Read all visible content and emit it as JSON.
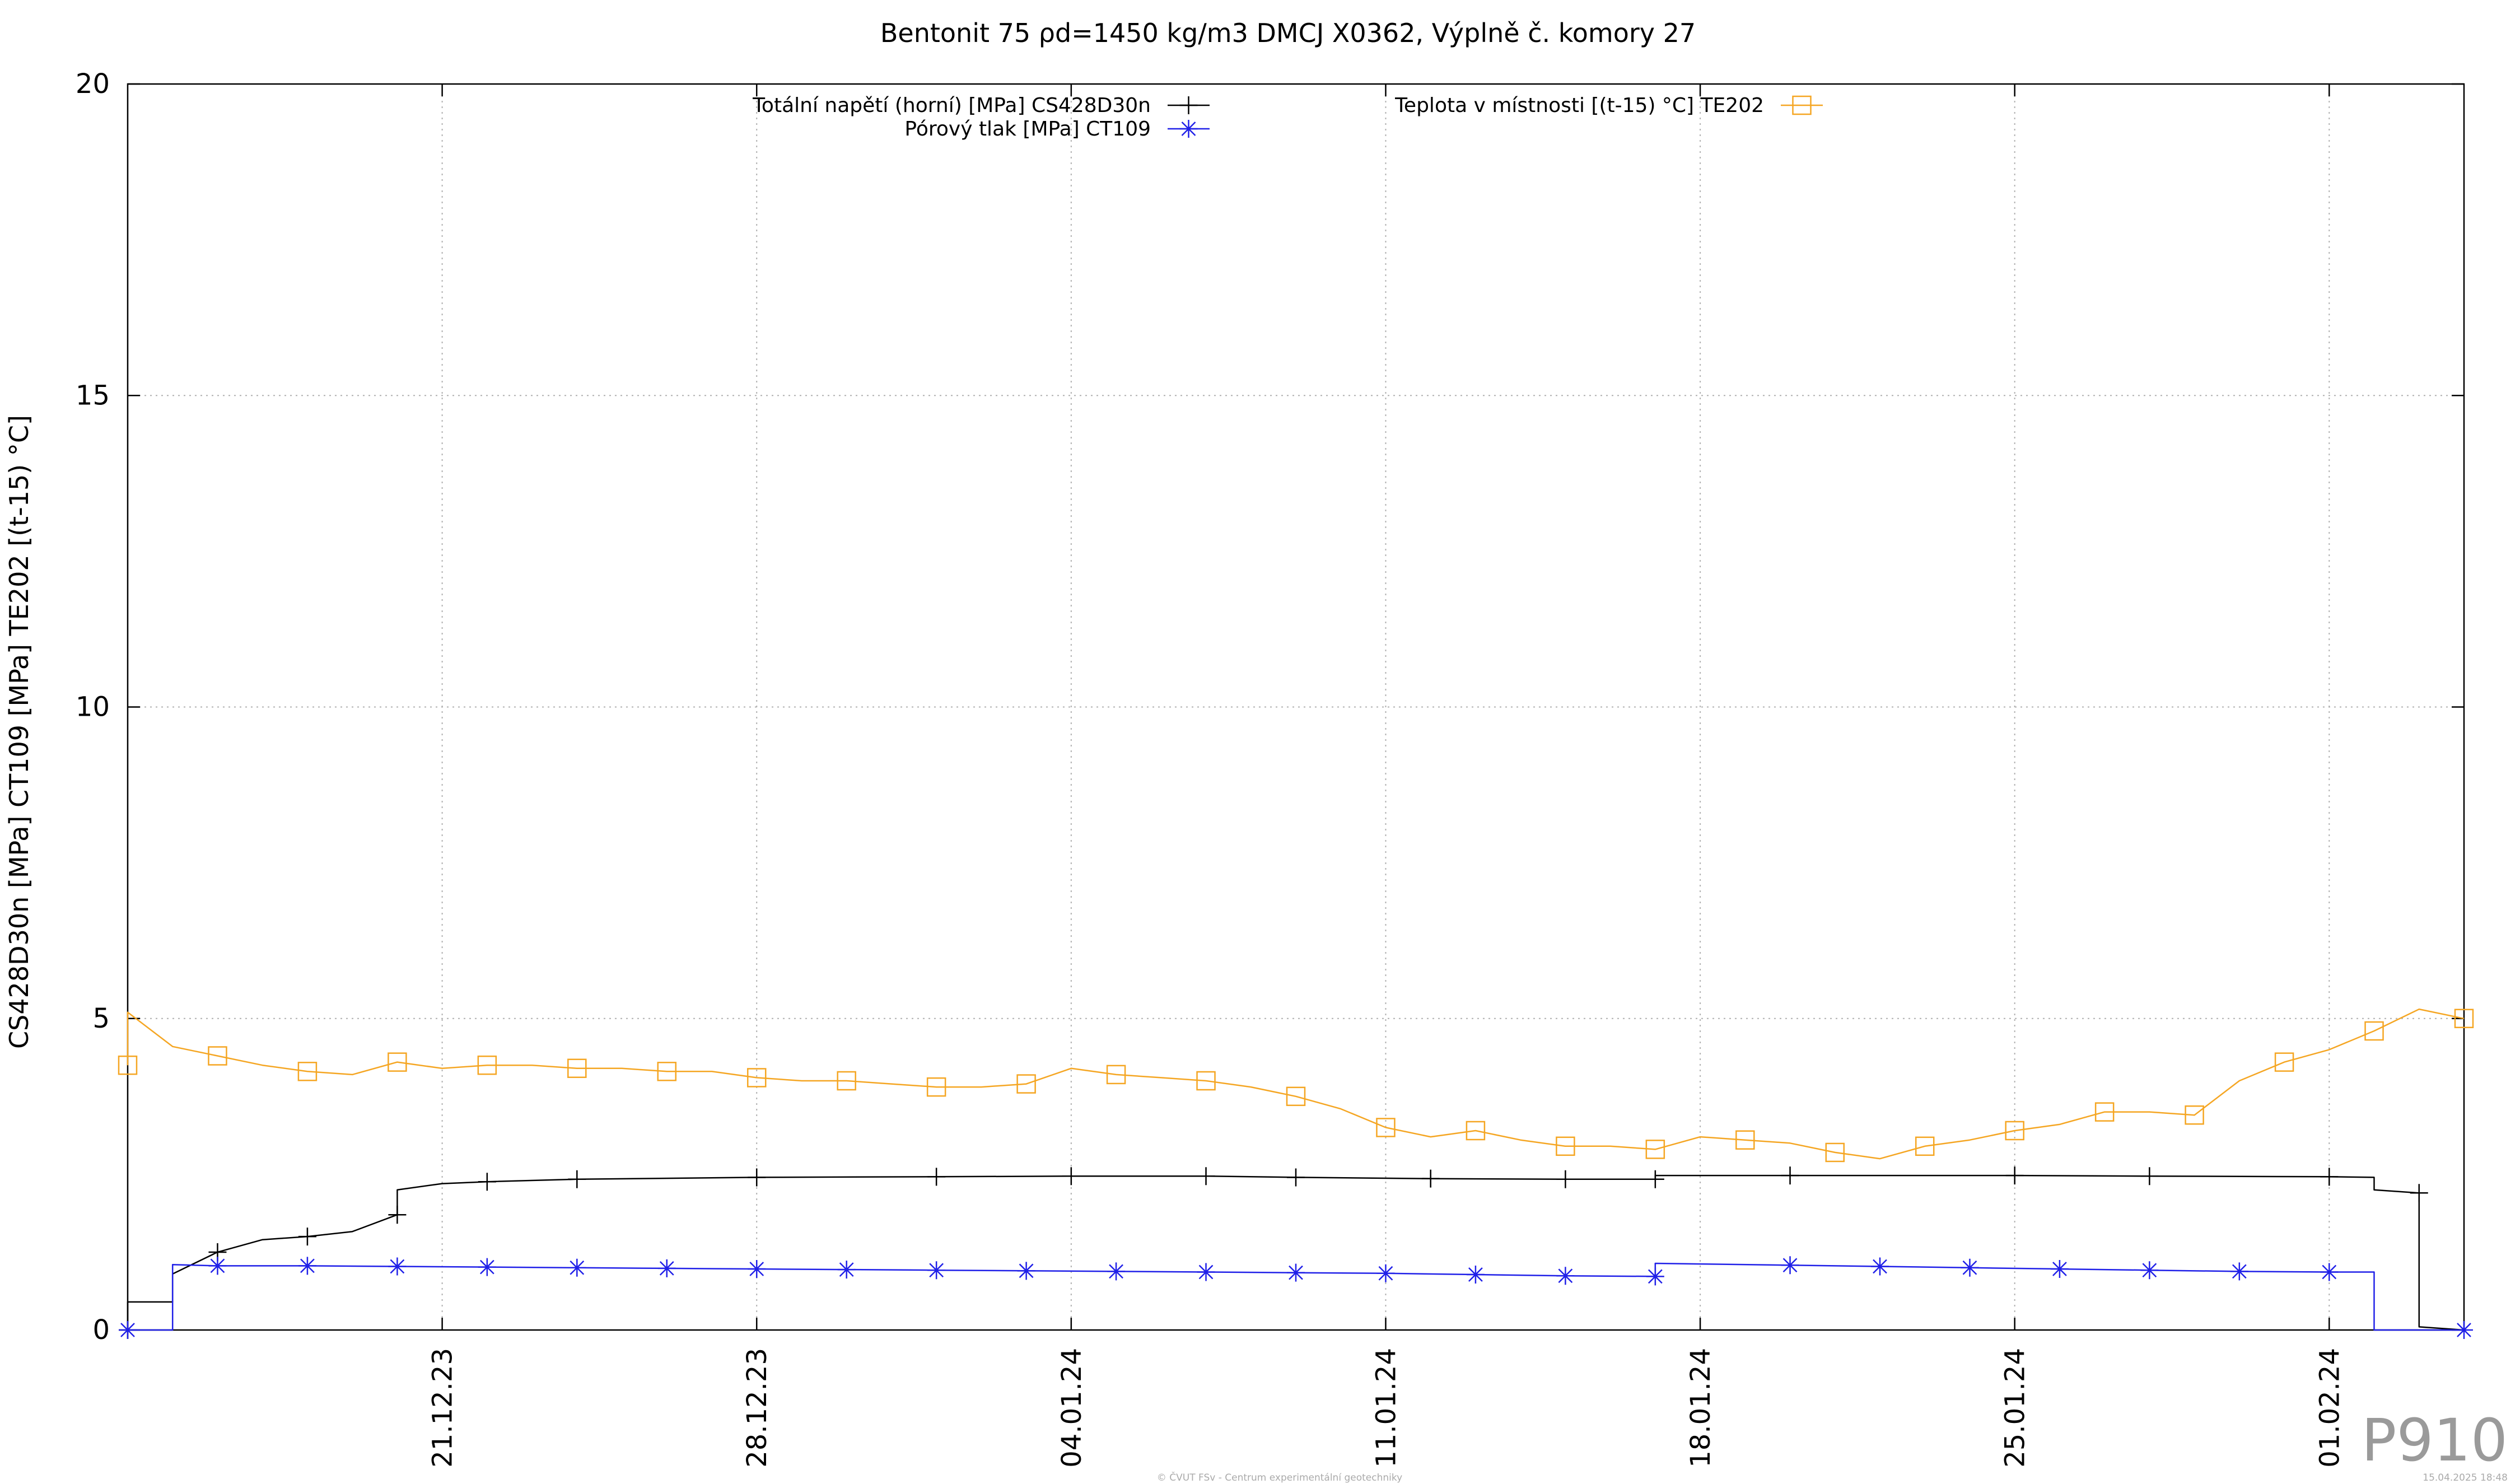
{
  "chart_data": {
    "type": "line",
    "title": "Bentonit 75 ρd=1450 kg/m3 DMCJ X0362, Výplně č. komory 27",
    "ylabel": "CS428D30n [MPa] CT109 [MPa] TE202 [(t-15) °C]",
    "xlabel": "",
    "ylim": [
      0,
      20
    ],
    "yticks": [
      0,
      5,
      10,
      15,
      20
    ],
    "xlim": [
      "2023-12-14",
      "2024-02-04"
    ],
    "xticks": [
      {
        "date": "2023-12-21",
        "label": "21.12.23"
      },
      {
        "date": "2023-12-28",
        "label": "28.12.23"
      },
      {
        "date": "2024-01-04",
        "label": "04.01.24"
      },
      {
        "date": "2024-01-11",
        "label": "11.01.24"
      },
      {
        "date": "2024-01-18",
        "label": "18.01.24"
      },
      {
        "date": "2024-01-25",
        "label": "25.01.24"
      },
      {
        "date": "2024-02-01",
        "label": "01.02.24"
      }
    ],
    "grid": true,
    "legend_position": "top",
    "series": [
      {
        "name": "Totální napětí (horní) [MPa] CS428D30n",
        "color": "#000000",
        "marker": "plus",
        "points": [
          [
            "2023-12-14",
            0.0
          ],
          [
            "2023-12-14",
            0.1
          ],
          [
            "2023-12-14",
            0.45
          ],
          [
            "2023-12-15",
            0.45
          ],
          [
            "2023-12-15",
            0.7
          ],
          [
            "2023-12-15",
            0.9
          ],
          [
            "2023-12-16",
            1.25
          ],
          [
            "2023-12-17",
            1.45
          ],
          [
            "2023-12-18",
            1.5
          ],
          [
            "2023-12-19",
            1.58
          ],
          [
            "2023-12-20",
            1.85
          ],
          [
            "2023-12-20",
            2.25
          ],
          [
            "2023-12-21",
            2.35
          ],
          [
            "2023-12-22",
            2.38
          ],
          [
            "2023-12-24",
            2.42
          ],
          [
            "2023-12-28",
            2.45
          ],
          [
            "2024-01-01",
            2.46
          ],
          [
            "2024-01-04",
            2.47
          ],
          [
            "2024-01-07",
            2.47
          ],
          [
            "2024-01-09",
            2.45
          ],
          [
            "2024-01-12",
            2.43
          ],
          [
            "2024-01-15",
            2.42
          ],
          [
            "2024-01-17",
            2.42
          ],
          [
            "2024-01-17",
            2.48
          ],
          [
            "2024-01-20",
            2.48
          ],
          [
            "2024-01-25",
            2.48
          ],
          [
            "2024-01-28",
            2.47
          ],
          [
            "2024-02-01",
            2.46
          ],
          [
            "2024-02-02",
            2.45
          ],
          [
            "2024-02-02",
            2.25
          ],
          [
            "2024-02-03",
            2.2
          ],
          [
            "2024-02-03",
            0.05
          ],
          [
            "2024-02-04",
            0.0
          ]
        ]
      },
      {
        "name": "Pórový tlak [MPa] CT109",
        "color": "#2020e8",
        "marker": "star",
        "points": [
          [
            "2023-12-14",
            0.0
          ],
          [
            "2023-12-15",
            0.0
          ],
          [
            "2023-12-15",
            1.05
          ],
          [
            "2023-12-16",
            1.03
          ],
          [
            "2023-12-18",
            1.03
          ],
          [
            "2023-12-20",
            1.02
          ],
          [
            "2023-12-22",
            1.01
          ],
          [
            "2023-12-24",
            1.0
          ],
          [
            "2023-12-26",
            0.99
          ],
          [
            "2023-12-28",
            0.98
          ],
          [
            "2023-12-30",
            0.97
          ],
          [
            "2024-01-01",
            0.96
          ],
          [
            "2024-01-03",
            0.95
          ],
          [
            "2024-01-05",
            0.94
          ],
          [
            "2024-01-07",
            0.93
          ],
          [
            "2024-01-09",
            0.92
          ],
          [
            "2024-01-11",
            0.91
          ],
          [
            "2024-01-13",
            0.89
          ],
          [
            "2024-01-15",
            0.87
          ],
          [
            "2024-01-17",
            0.86
          ],
          [
            "2024-01-17",
            1.07
          ],
          [
            "2024-01-18",
            1.06
          ],
          [
            "2024-01-20",
            1.04
          ],
          [
            "2024-01-22",
            1.02
          ],
          [
            "2024-01-24",
            1.0
          ],
          [
            "2024-01-26",
            0.98
          ],
          [
            "2024-01-28",
            0.96
          ],
          [
            "2024-01-30",
            0.94
          ],
          [
            "2024-02-01",
            0.93
          ],
          [
            "2024-02-02",
            0.93
          ],
          [
            "2024-02-02",
            0.0
          ],
          [
            "2024-02-04",
            0.0
          ]
        ]
      },
      {
        "name": "Teplota v místnosti [(t-15) °C] TE202",
        "color": "#f5a623",
        "marker": "square",
        "points": [
          [
            "2023-12-14",
            4.25
          ],
          [
            "2023-12-14",
            5.1
          ],
          [
            "2023-12-15",
            4.55
          ],
          [
            "2023-12-16",
            4.4
          ],
          [
            "2023-12-17",
            4.25
          ],
          [
            "2023-12-18",
            4.15
          ],
          [
            "2023-12-19",
            4.1
          ],
          [
            "2023-12-20",
            4.3
          ],
          [
            "2023-12-21",
            4.2
          ],
          [
            "2023-12-22",
            4.25
          ],
          [
            "2023-12-23",
            4.25
          ],
          [
            "2023-12-24",
            4.2
          ],
          [
            "2023-12-25",
            4.2
          ],
          [
            "2023-12-26",
            4.15
          ],
          [
            "2023-12-27",
            4.15
          ],
          [
            "2023-12-28",
            4.05
          ],
          [
            "2023-12-29",
            4.0
          ],
          [
            "2023-12-30",
            4.0
          ],
          [
            "2023-12-31",
            3.95
          ],
          [
            "2024-01-01",
            3.9
          ],
          [
            "2024-01-02",
            3.9
          ],
          [
            "2024-01-03",
            3.95
          ],
          [
            "2024-01-04",
            4.2
          ],
          [
            "2024-01-05",
            4.1
          ],
          [
            "2024-01-06",
            4.05
          ],
          [
            "2024-01-07",
            4.0
          ],
          [
            "2024-01-08",
            3.9
          ],
          [
            "2024-01-09",
            3.75
          ],
          [
            "2024-01-10",
            3.55
          ],
          [
            "2024-01-11",
            3.25
          ],
          [
            "2024-01-12",
            3.1
          ],
          [
            "2024-01-13",
            3.2
          ],
          [
            "2024-01-14",
            3.05
          ],
          [
            "2024-01-15",
            2.95
          ],
          [
            "2024-01-16",
            2.95
          ],
          [
            "2024-01-17",
            2.9
          ],
          [
            "2024-01-18",
            3.1
          ],
          [
            "2024-01-19",
            3.05
          ],
          [
            "2024-01-20",
            3.0
          ],
          [
            "2024-01-21",
            2.85
          ],
          [
            "2024-01-22",
            2.75
          ],
          [
            "2024-01-23",
            2.95
          ],
          [
            "2024-01-24",
            3.05
          ],
          [
            "2024-01-25",
            3.2
          ],
          [
            "2024-01-26",
            3.3
          ],
          [
            "2024-01-27",
            3.5
          ],
          [
            "2024-01-28",
            3.5
          ],
          [
            "2024-01-29",
            3.45
          ],
          [
            "2024-01-30",
            4.0
          ],
          [
            "2024-01-31",
            4.3
          ],
          [
            "2024-02-01",
            4.5
          ],
          [
            "2024-02-02",
            4.8
          ],
          [
            "2024-02-03",
            5.15
          ],
          [
            "2024-02-04",
            5.0
          ]
        ]
      }
    ]
  },
  "watermark": {
    "code": "P910",
    "copyright": "© ČVUT FSv - Centrum experimentální geotechniky",
    "timestamp": "15.04.2025 18:48"
  }
}
